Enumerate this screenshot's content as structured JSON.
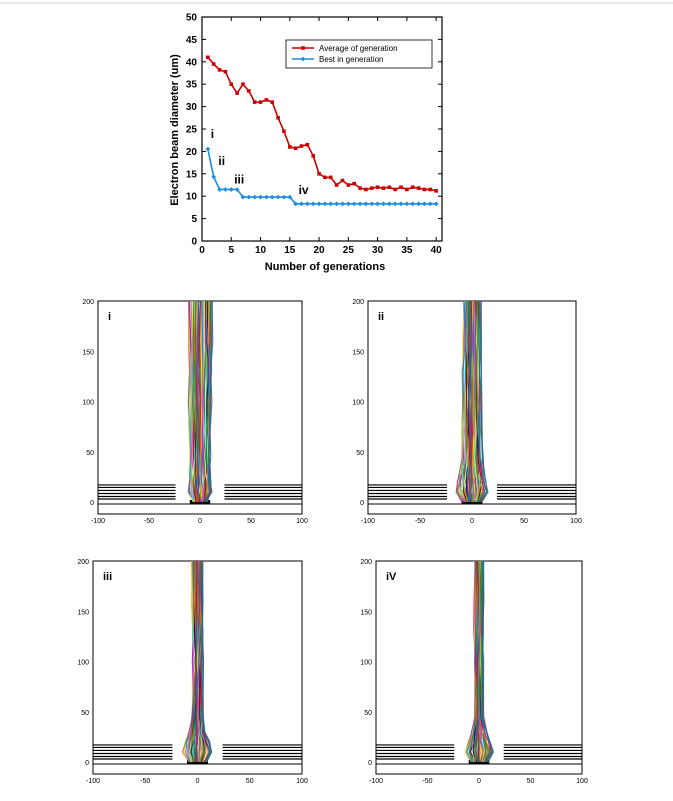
{
  "chart_data": [
    {
      "type": "line",
      "xlabel": "Number of generations",
      "ylabel": "Electron beam diameter (um)",
      "xlim": [
        0,
        41
      ],
      "ylim": [
        0,
        50
      ],
      "xticks": [
        0,
        5,
        10,
        15,
        20,
        25,
        30,
        35,
        40
      ],
      "yticks": [
        0,
        5,
        10,
        15,
        20,
        25,
        30,
        35,
        40,
        45,
        50
      ],
      "grid": false,
      "legend_position": "top-right",
      "x": [
        1,
        2,
        3,
        4,
        5,
        6,
        7,
        8,
        9,
        10,
        11,
        12,
        13,
        14,
        15,
        16,
        17,
        18,
        19,
        20,
        21,
        22,
        23,
        24,
        25,
        26,
        27,
        28,
        29,
        30,
        31,
        32,
        33,
        34,
        35,
        36,
        37,
        38,
        39,
        40
      ],
      "series": [
        {
          "name": "Average of generation",
          "color": "#cc0000",
          "marker": "square",
          "values": [
            41,
            39.5,
            38.2,
            37.8,
            35,
            33,
            35,
            33.5,
            31,
            31,
            31.5,
            31,
            27.5,
            24.5,
            21,
            20.7,
            21.2,
            21.5,
            19,
            15,
            14.2,
            14.2,
            12.5,
            13.5,
            12.5,
            12.8,
            11.8,
            11.5,
            11.8,
            12,
            11.8,
            12,
            11.5,
            12,
            11.5,
            12,
            11.8,
            11.5,
            11.5,
            11.2
          ]
        },
        {
          "name": "Best in generation",
          "color": "#1e8fe0",
          "marker": "diamond",
          "values": [
            20.5,
            14.3,
            11.5,
            11.5,
            11.5,
            11.5,
            9.8,
            9.8,
            9.8,
            9.8,
            9.8,
            9.8,
            9.8,
            9.8,
            9.8,
            8.3,
            8.3,
            8.3,
            8.3,
            8.3,
            8.3,
            8.3,
            8.3,
            8.3,
            8.3,
            8.3,
            8.3,
            8.3,
            8.3,
            8.3,
            8.3,
            8.3,
            8.3,
            8.3,
            8.3,
            8.3,
            8.3,
            8.3,
            8.3,
            8.3
          ]
        }
      ],
      "annotations": [
        {
          "text": "i",
          "x": 1.5,
          "y": 23
        },
        {
          "text": "ii",
          "x": 2.8,
          "y": 17
        },
        {
          "text": "iii",
          "x": 5.5,
          "y": 12.8
        },
        {
          "text": "iv",
          "x": 16.5,
          "y": 10.5
        }
      ]
    },
    {
      "type": "trajectory",
      "panel_label": "i",
      "xlim": [
        -100,
        100
      ],
      "ylim": [
        0,
        200
      ],
      "xticks": [
        -100,
        -50,
        0,
        50,
        100
      ],
      "yticks": [
        0,
        50,
        100,
        150,
        200
      ],
      "beam_top_halfwidth": 12,
      "beam_waist_halfwidth": 10,
      "beam_base_halfwidth": 11
    },
    {
      "type": "trajectory",
      "panel_label": "ii",
      "xlim": [
        -100,
        100
      ],
      "ylim": [
        0,
        200
      ],
      "xticks": [
        -100,
        -50,
        0,
        50,
        100
      ],
      "yticks": [
        0,
        50,
        100,
        150,
        200
      ],
      "beam_top_halfwidth": 8,
      "beam_waist_halfwidth": 10,
      "beam_base_halfwidth": 15
    },
    {
      "type": "trajectory",
      "panel_label": "iii",
      "xlim": [
        -100,
        100
      ],
      "ylim": [
        0,
        200
      ],
      "xticks": [
        -100,
        -50,
        0,
        50,
        100
      ],
      "yticks": [
        0,
        50,
        100,
        150,
        200
      ],
      "beam_top_halfwidth": 5,
      "beam_waist_halfwidth": 5,
      "beam_base_halfwidth": 14
    },
    {
      "type": "trajectory",
      "panel_label": "iV",
      "xlim": [
        -100,
        100
      ],
      "ylim": [
        0,
        200
      ],
      "xticks": [
        -100,
        -50,
        0,
        50,
        100
      ],
      "yticks": [
        0,
        50,
        100,
        150,
        200
      ],
      "beam_top_halfwidth": 4,
      "beam_waist_halfwidth": 4,
      "beam_base_halfwidth": 14
    }
  ]
}
